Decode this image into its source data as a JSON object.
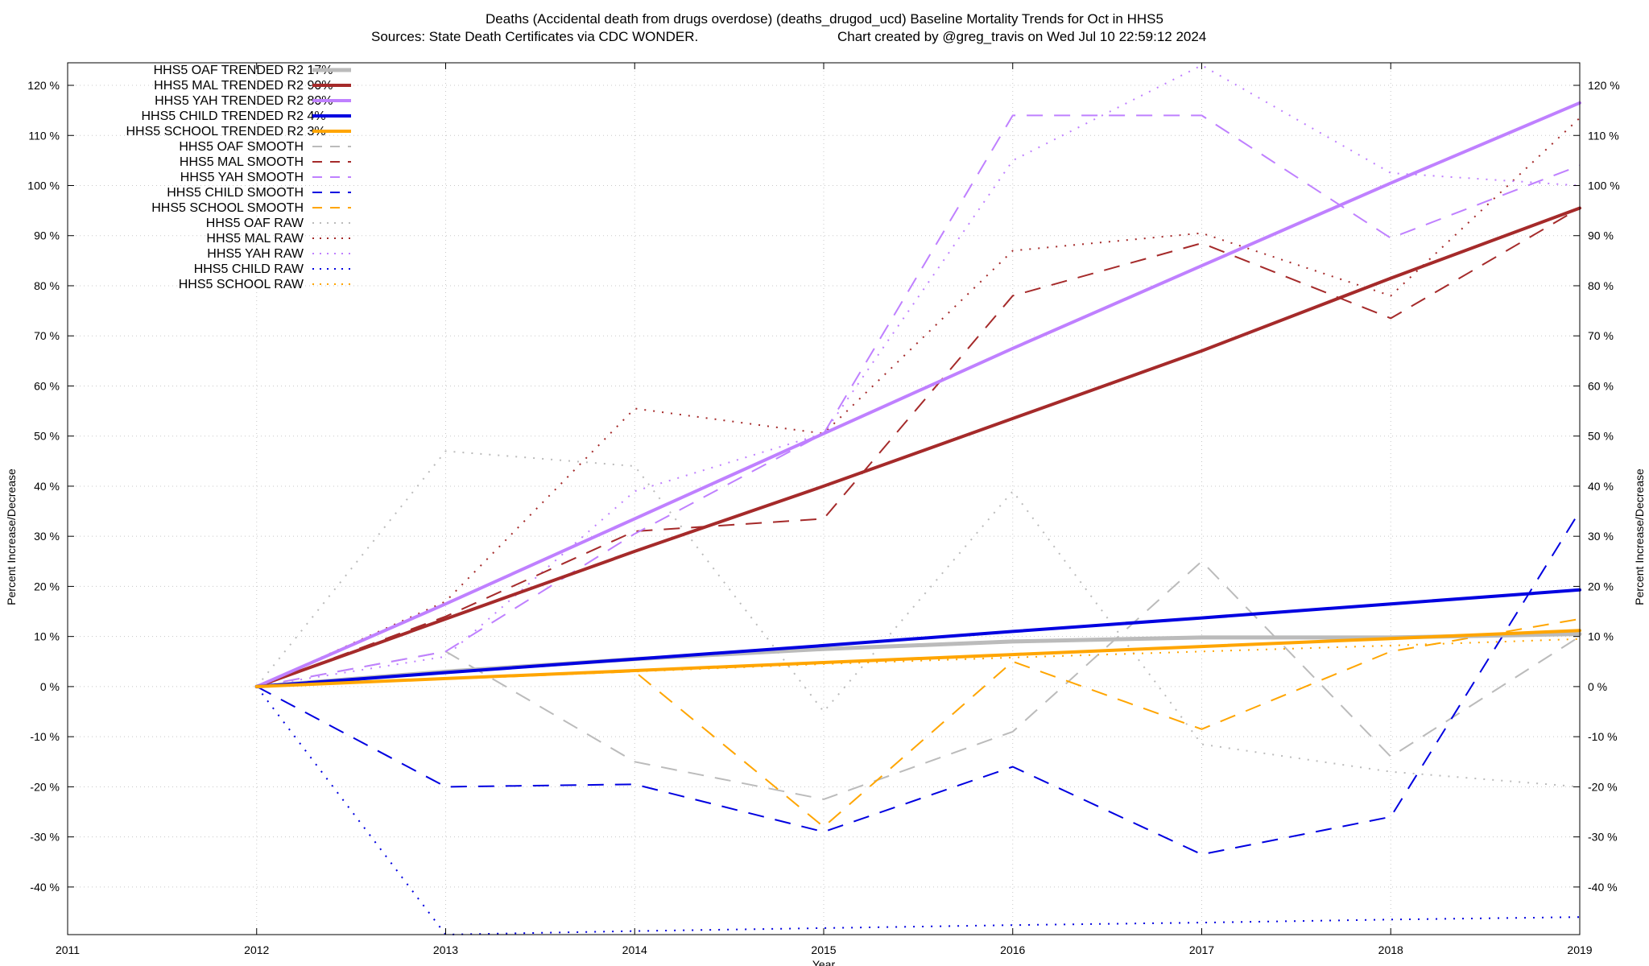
{
  "chart_data": {
    "type": "line",
    "title_line1": "Deaths (Accidental death from drugs overdose) (deaths_drugod_ucd)  Baseline Mortality Trends for Oct in HHS5",
    "title_line2_left": "Sources: State Death Certificates via CDC WONDER.",
    "title_line2_right": "Chart created by @greg_travis on Wed Jul 10 22:59:12 2024",
    "xlabel": "Year",
    "ylabel_left": "Percent Increase/Decrease",
    "ylabel_right": "Percent Increase/Decrease",
    "xlim": [
      2011,
      2019
    ],
    "ylim": [
      -49.5,
      124.5
    ],
    "x_ticks": [
      "2011",
      "2012",
      "2013",
      "2014",
      "2015",
      "2016",
      "2017",
      "2018",
      "2019"
    ],
    "y_ticks": [
      "-40 %",
      "-30 %",
      "-20 %",
      "-10 %",
      "0 %",
      "10 %",
      "20 %",
      "30 %",
      "40 %",
      "50 %",
      "60 %",
      "70 %",
      "80 %",
      "90 %",
      "100 %",
      "110 %",
      "120 %"
    ],
    "grid": true,
    "legend_position": "top-left",
    "series": [
      {
        "name": "HHS5 OAF TRENDED R2",
        "r2": "17%",
        "color": "#bbbbbb",
        "style": "solid",
        "width": 5,
        "x": [
          2012,
          2013,
          2014,
          2015,
          2016,
          2017,
          2018,
          2019
        ],
        "y": [
          0,
          3,
          5.5,
          7.5,
          9,
          9.8,
          9.8,
          10.5
        ]
      },
      {
        "name": "HHS5 MAL TRENDED R2",
        "r2": "90%",
        "color": "#a52a2a",
        "style": "solid",
        "width": 4,
        "x": [
          2012,
          2013,
          2014,
          2015,
          2016,
          2017,
          2018,
          2019
        ],
        "y": [
          0,
          13.5,
          27,
          40,
          53.5,
          67,
          81.5,
          95.5
        ]
      },
      {
        "name": "HHS5 YAH TRENDED R2",
        "r2": "80%",
        "color": "#bf80ff",
        "style": "solid",
        "width": 4,
        "x": [
          2012,
          2013,
          2014,
          2015,
          2016,
          2017,
          2018,
          2019
        ],
        "y": [
          0,
          16.5,
          33.5,
          50.5,
          67.5,
          84,
          100.5,
          116.5
        ]
      },
      {
        "name": "HHS5 CHILD TRENDED R2",
        "r2": "4%",
        "color": "#0000e0",
        "style": "solid",
        "width": 4,
        "x": [
          2012,
          2013,
          2014,
          2015,
          2016,
          2017,
          2018,
          2019
        ],
        "y": [
          0,
          2.8,
          5.5,
          8.2,
          11,
          13.7,
          16.5,
          19.3
        ]
      },
      {
        "name": "HHS5 SCHOOL TRENDED R2",
        "r2": "3%",
        "color": "#ffa500",
        "style": "solid",
        "width": 4,
        "x": [
          2012,
          2013,
          2014,
          2015,
          2016,
          2017,
          2018,
          2019
        ],
        "y": [
          0,
          1.6,
          3.2,
          4.8,
          6.4,
          8,
          9.6,
          11.2
        ]
      },
      {
        "name": "HHS5 OAF SMOOTH",
        "color": "#bbbbbb",
        "style": "dashed",
        "width": 2,
        "x": [
          2012,
          2013,
          2014,
          2015,
          2016,
          2017,
          2018,
          2019
        ],
        "y": [
          0,
          7,
          -15,
          -22.5,
          -9,
          25,
          -14,
          10
        ]
      },
      {
        "name": "HHS5 MAL SMOOTH",
        "color": "#a52a2a",
        "style": "dashed",
        "width": 2,
        "x": [
          2012,
          2013,
          2014,
          2015,
          2016,
          2017,
          2018,
          2019
        ],
        "y": [
          0,
          14,
          31,
          33.5,
          78,
          88.5,
          73.5,
          95.5
        ]
      },
      {
        "name": "HHS5 YAH SMOOTH",
        "color": "#bf80ff",
        "style": "dashed",
        "width": 2,
        "x": [
          2012,
          2013,
          2014,
          2015,
          2016,
          2017,
          2018,
          2019
        ],
        "y": [
          0,
          7,
          30.5,
          50.5,
          114,
          114,
          89.5,
          104
        ]
      },
      {
        "name": "HHS5 CHILD SMOOTH",
        "color": "#0000e0",
        "style": "dashed",
        "width": 2,
        "x": [
          2012,
          2013,
          2014,
          2015,
          2016,
          2017,
          2018,
          2019
        ],
        "y": [
          0,
          -20,
          -19.5,
          -29,
          -16,
          -33.5,
          -26,
          35
        ]
      },
      {
        "name": "HHS5 SCHOOL SMOOTH",
        "color": "#ffa500",
        "style": "dashed",
        "width": 2,
        "x": [
          2012,
          2013,
          2014,
          2015,
          2016,
          2017,
          2018,
          2019
        ],
        "y": [
          0,
          1.5,
          3,
          -28,
          5,
          -8.5,
          7,
          13.5
        ]
      },
      {
        "name": "HHS5 OAF RAW",
        "color": "#bbbbbb",
        "style": "dotted",
        "width": 2,
        "x": [
          2012,
          2013,
          2014,
          2015,
          2016,
          2017,
          2018,
          2019
        ],
        "y": [
          0,
          47,
          44,
          -5,
          39,
          -11.5,
          -17,
          -20
        ]
      },
      {
        "name": "HHS5 MAL RAW",
        "color": "#a52a2a",
        "style": "dotted",
        "width": 2,
        "x": [
          2012,
          2013,
          2014,
          2015,
          2016,
          2017,
          2018,
          2019
        ],
        "y": [
          0,
          17,
          55.5,
          50.5,
          87,
          90.5,
          78,
          113.5
        ]
      },
      {
        "name": "HHS5 YAH RAW",
        "color": "#bf80ff",
        "style": "dotted",
        "width": 2,
        "x": [
          2012,
          2013,
          2014,
          2015,
          2016,
          2017,
          2018,
          2019
        ],
        "y": [
          0,
          6,
          39,
          50.5,
          105,
          124,
          102.5,
          100
        ]
      },
      {
        "name": "HHS5 CHILD RAW",
        "color": "#0000e0",
        "style": "dotted",
        "width": 2,
        "x": [
          2012,
          2013,
          2014,
          2015,
          2016,
          2017,
          2018,
          2019
        ],
        "y": [
          0,
          -49.5,
          -48.8,
          -48.2,
          -47.6,
          -47.1,
          -46.5,
          -46
        ]
      },
      {
        "name": "HHS5 SCHOOL RAW",
        "color": "#ffa500",
        "style": "dotted",
        "width": 2,
        "x": [
          2012,
          2013,
          2014,
          2015,
          2016,
          2017,
          2018,
          2019
        ],
        "y": [
          0,
          1.5,
          3,
          4.5,
          5.8,
          7,
          8.2,
          9.5
        ]
      }
    ]
  }
}
